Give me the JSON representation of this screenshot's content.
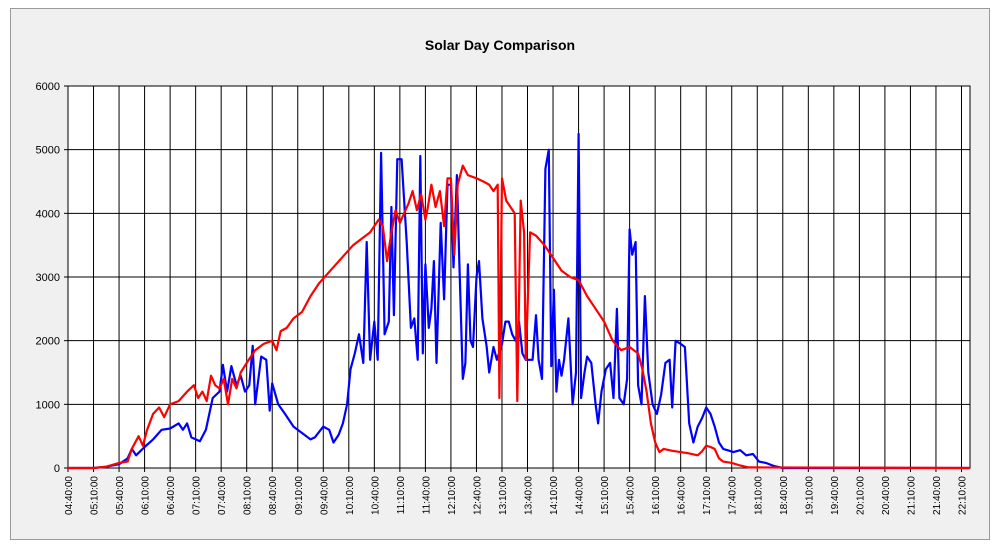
{
  "chart_data": {
    "type": "line",
    "title": "Solar Day Comparison",
    "xlabel": "",
    "ylabel": "",
    "ylim": [
      0,
      6000
    ],
    "yticks": [
      0,
      1000,
      2000,
      3000,
      4000,
      5000,
      6000
    ],
    "x_range": [
      "04:40:00",
      "22:20:00"
    ],
    "xtick_labels": [
      "04:40:00",
      "05:10:00",
      "05:40:00",
      "06:10:00",
      "06:40:00",
      "07:10:00",
      "07:40:00",
      "08:10:00",
      "08:40:00",
      "09:10:00",
      "09:40:00",
      "10:10:00",
      "10:40:00",
      "11:10:00",
      "11:40:00",
      "12:10:00",
      "12:40:00",
      "13:10:00",
      "13:40:00",
      "14:10:00",
      "14:40:00",
      "15:10:00",
      "15:40:00",
      "16:10:00",
      "16:40:00",
      "17:10:00",
      "17:40:00",
      "18:10:00",
      "18:40:00",
      "19:10:00",
      "19:40:00",
      "20:10:00",
      "20:40:00",
      "21:10:00",
      "21:40:00",
      "22:10:00"
    ],
    "grid": true,
    "colors": {
      "series_blue": "#0000ff",
      "series_red": "#ff0000",
      "plot_bg": "#ffffff",
      "frame_bg": "#f0f0f0"
    },
    "series": [
      {
        "color": "#0000ff",
        "points": [
          [
            "04:40:00",
            0
          ],
          [
            "05:10:00",
            0
          ],
          [
            "05:25:00",
            20
          ],
          [
            "05:40:00",
            60
          ],
          [
            "05:50:00",
            150
          ],
          [
            "05:55:00",
            300
          ],
          [
            "06:00:00",
            200
          ],
          [
            "06:10:00",
            330
          ],
          [
            "06:20:00",
            450
          ],
          [
            "06:30:00",
            600
          ],
          [
            "06:40:00",
            620
          ],
          [
            "06:50:00",
            700
          ],
          [
            "06:55:00",
            600
          ],
          [
            "07:00:00",
            700
          ],
          [
            "07:05:00",
            480
          ],
          [
            "07:15:00",
            420
          ],
          [
            "07:22:00",
            600
          ],
          [
            "07:30:00",
            1100
          ],
          [
            "07:38:00",
            1200
          ],
          [
            "07:42:00",
            1620
          ],
          [
            "07:47:00",
            1200
          ],
          [
            "07:52:00",
            1600
          ],
          [
            "07:58:00",
            1300
          ],
          [
            "08:03:00",
            1450
          ],
          [
            "08:08:00",
            1200
          ],
          [
            "08:13:00",
            1300
          ],
          [
            "08:17:00",
            1920
          ],
          [
            "08:20:00",
            1000
          ],
          [
            "08:27:00",
            1750
          ],
          [
            "08:33:00",
            1700
          ],
          [
            "08:37:00",
            900
          ],
          [
            "08:40:00",
            1330
          ],
          [
            "08:47:00",
            1000
          ],
          [
            "08:55:00",
            850
          ],
          [
            "09:05:00",
            650
          ],
          [
            "09:15:00",
            550
          ],
          [
            "09:25:00",
            450
          ],
          [
            "09:30:00",
            480
          ],
          [
            "09:40:00",
            650
          ],
          [
            "09:47:00",
            600
          ],
          [
            "09:52:00",
            400
          ],
          [
            "09:58:00",
            520
          ],
          [
            "10:03:00",
            700
          ],
          [
            "10:08:00",
            1000
          ],
          [
            "10:12:00",
            1550
          ],
          [
            "10:17:00",
            1800
          ],
          [
            "10:22:00",
            2100
          ],
          [
            "10:27:00",
            1650
          ],
          [
            "10:31:00",
            3550
          ],
          [
            "10:35:00",
            1700
          ],
          [
            "10:40:00",
            2300
          ],
          [
            "10:44:00",
            1700
          ],
          [
            "10:48:00",
            4950
          ],
          [
            "10:52:00",
            2100
          ],
          [
            "10:57:00",
            2300
          ],
          [
            "11:00:00",
            4100
          ],
          [
            "11:03:00",
            2400
          ],
          [
            "11:07:00",
            4850
          ],
          [
            "11:12:00",
            4850
          ],
          [
            "11:18:00",
            3550
          ],
          [
            "11:23:00",
            2200
          ],
          [
            "11:27:00",
            2350
          ],
          [
            "11:31:00",
            1700
          ],
          [
            "11:34:00",
            4900
          ],
          [
            "11:37:00",
            1800
          ],
          [
            "11:40:00",
            3200
          ],
          [
            "11:44:00",
            2200
          ],
          [
            "11:47:00",
            2500
          ],
          [
            "11:50:00",
            3250
          ],
          [
            "11:53:00",
            1650
          ],
          [
            "11:58:00",
            3850
          ],
          [
            "12:02:00",
            2650
          ],
          [
            "12:06:00",
            4450
          ],
          [
            "12:10:00",
            4450
          ],
          [
            "12:13:00",
            3150
          ],
          [
            "12:17:00",
            4600
          ],
          [
            "12:20:00",
            3200
          ],
          [
            "12:24:00",
            1400
          ],
          [
            "12:27:00",
            1650
          ],
          [
            "12:30:00",
            3200
          ],
          [
            "12:33:00",
            2000
          ],
          [
            "12:36:00",
            1900
          ],
          [
            "12:40:00",
            3000
          ],
          [
            "12:43:00",
            3250
          ],
          [
            "12:47:00",
            2350
          ],
          [
            "12:52:00",
            1900
          ],
          [
            "12:55:00",
            1500
          ],
          [
            "13:00:00",
            1900
          ],
          [
            "13:04:00",
            1700
          ],
          [
            "13:10:00",
            1950
          ],
          [
            "13:14:00",
            2300
          ],
          [
            "13:18:00",
            2300
          ],
          [
            "13:22:00",
            2100
          ],
          [
            "13:26:00",
            2000
          ],
          [
            "13:30:00",
            2300
          ],
          [
            "13:34:00",
            1800
          ],
          [
            "13:38:00",
            1700
          ],
          [
            "13:42:00",
            1700
          ],
          [
            "13:46:00",
            1700
          ],
          [
            "13:50:00",
            2400
          ],
          [
            "13:53:00",
            1700
          ],
          [
            "13:57:00",
            1400
          ],
          [
            "14:01:00",
            4700
          ],
          [
            "14:05:00",
            5000
          ],
          [
            "14:08:00",
            1600
          ],
          [
            "14:11:00",
            2800
          ],
          [
            "14:14:00",
            1200
          ],
          [
            "14:17:00",
            1700
          ],
          [
            "14:20:00",
            1450
          ],
          [
            "14:23:00",
            1700
          ],
          [
            "14:28:00",
            2350
          ],
          [
            "14:33:00",
            1000
          ],
          [
            "14:37:00",
            1500
          ],
          [
            "14:40:00",
            5250
          ],
          [
            "14:43:00",
            1100
          ],
          [
            "14:47:00",
            1500
          ],
          [
            "14:50:00",
            1750
          ],
          [
            "14:55:00",
            1650
          ],
          [
            "15:00:00",
            1000
          ],
          [
            "15:03:00",
            700
          ],
          [
            "15:07:00",
            1200
          ],
          [
            "15:12:00",
            1550
          ],
          [
            "15:17:00",
            1650
          ],
          [
            "15:21:00",
            1100
          ],
          [
            "15:25:00",
            2500
          ],
          [
            "15:28:00",
            1100
          ],
          [
            "15:33:00",
            1000
          ],
          [
            "15:37:00",
            1400
          ],
          [
            "15:40:00",
            3750
          ],
          [
            "15:43:00",
            3350
          ],
          [
            "15:47:00",
            3550
          ],
          [
            "15:50:00",
            1300
          ],
          [
            "15:54:00",
            1000
          ],
          [
            "15:58:00",
            2700
          ],
          [
            "16:02:00",
            1500
          ],
          [
            "16:07:00",
            1000
          ],
          [
            "16:12:00",
            850
          ],
          [
            "16:17:00",
            1150
          ],
          [
            "16:22:00",
            1650
          ],
          [
            "16:27:00",
            1700
          ],
          [
            "16:30:00",
            950
          ],
          [
            "16:34:00",
            2000
          ],
          [
            "16:40:00",
            1950
          ],
          [
            "16:45:00",
            1900
          ],
          [
            "16:50:00",
            700
          ],
          [
            "16:55:00",
            400
          ],
          [
            "17:00:00",
            650
          ],
          [
            "17:05:00",
            780
          ],
          [
            "17:10:00",
            950
          ],
          [
            "17:15:00",
            850
          ],
          [
            "17:20:00",
            650
          ],
          [
            "17:25:00",
            400
          ],
          [
            "17:30:00",
            300
          ],
          [
            "17:35:00",
            280
          ],
          [
            "17:42:00",
            250
          ],
          [
            "17:50:00",
            280
          ],
          [
            "17:57:00",
            200
          ],
          [
            "18:05:00",
            220
          ],
          [
            "18:12:00",
            100
          ],
          [
            "18:20:00",
            80
          ],
          [
            "18:30:00",
            30
          ],
          [
            "18:40:00",
            0
          ],
          [
            "22:20:00",
            0
          ]
        ]
      },
      {
        "color": "#ff0000",
        "points": [
          [
            "04:40:00",
            0
          ],
          [
            "05:10:00",
            0
          ],
          [
            "05:25:00",
            20
          ],
          [
            "05:40:00",
            80
          ],
          [
            "05:50:00",
            100
          ],
          [
            "05:55:00",
            300
          ],
          [
            "06:03:00",
            500
          ],
          [
            "06:08:00",
            350
          ],
          [
            "06:13:00",
            600
          ],
          [
            "06:20:00",
            850
          ],
          [
            "06:27:00",
            950
          ],
          [
            "06:33:00",
            800
          ],
          [
            "06:40:00",
            1000
          ],
          [
            "06:50:00",
            1050
          ],
          [
            "07:00:00",
            1200
          ],
          [
            "07:08:00",
            1300
          ],
          [
            "07:13:00",
            1100
          ],
          [
            "07:18:00",
            1200
          ],
          [
            "07:23:00",
            1050
          ],
          [
            "07:28:00",
            1450
          ],
          [
            "07:33:00",
            1300
          ],
          [
            "07:38:00",
            1250
          ],
          [
            "07:43:00",
            1400
          ],
          [
            "07:48:00",
            1000
          ],
          [
            "07:53:00",
            1400
          ],
          [
            "07:58:00",
            1250
          ],
          [
            "08:03:00",
            1500
          ],
          [
            "08:10:00",
            1650
          ],
          [
            "08:20:00",
            1850
          ],
          [
            "08:30:00",
            1950
          ],
          [
            "08:40:00",
            2000
          ],
          [
            "08:45:00",
            1850
          ],
          [
            "08:50:00",
            2150
          ],
          [
            "08:57:00",
            2200
          ],
          [
            "09:05:00",
            2350
          ],
          [
            "09:15:00",
            2450
          ],
          [
            "09:25:00",
            2700
          ],
          [
            "09:35:00",
            2900
          ],
          [
            "09:45:00",
            3050
          ],
          [
            "09:55:00",
            3200
          ],
          [
            "10:05:00",
            3350
          ],
          [
            "10:15:00",
            3500
          ],
          [
            "10:25:00",
            3600
          ],
          [
            "10:35:00",
            3700
          ],
          [
            "10:45:00",
            3900
          ],
          [
            "10:50:00",
            3800
          ],
          [
            "10:55:00",
            3250
          ],
          [
            "11:00:00",
            3700
          ],
          [
            "11:05:00",
            4050
          ],
          [
            "11:10:00",
            3850
          ],
          [
            "11:15:00",
            4000
          ],
          [
            "11:20:00",
            4150
          ],
          [
            "11:25:00",
            4350
          ],
          [
            "11:30:00",
            4050
          ],
          [
            "11:35:00",
            4300
          ],
          [
            "11:40:00",
            3900
          ],
          [
            "11:43:00",
            4100
          ],
          [
            "11:47:00",
            4450
          ],
          [
            "11:52:00",
            4100
          ],
          [
            "11:57:00",
            4350
          ],
          [
            "12:02:00",
            3800
          ],
          [
            "12:06:00",
            4550
          ],
          [
            "12:10:00",
            4550
          ],
          [
            "12:14:00",
            3350
          ],
          [
            "12:18:00",
            4450
          ],
          [
            "12:24:00",
            4750
          ],
          [
            "12:30:00",
            4600
          ],
          [
            "12:40:00",
            4550
          ],
          [
            "12:48:00",
            4500
          ],
          [
            "12:55:00",
            4450
          ],
          [
            "13:00:00",
            4350
          ],
          [
            "13:05:00",
            4450
          ],
          [
            "13:07:00",
            1100
          ],
          [
            "13:10:00",
            4550
          ],
          [
            "13:15:00",
            4200
          ],
          [
            "13:20:00",
            4100
          ],
          [
            "13:25:00",
            4000
          ],
          [
            "13:28:00",
            1050
          ],
          [
            "13:32:00",
            4200
          ],
          [
            "13:36:00",
            3700
          ],
          [
            "13:38:00",
            1700
          ],
          [
            "13:43:00",
            3700
          ],
          [
            "13:50:00",
            3650
          ],
          [
            "14:00:00",
            3500
          ],
          [
            "14:10:00",
            3300
          ],
          [
            "14:20:00",
            3100
          ],
          [
            "14:30:00",
            3000
          ],
          [
            "14:40:00",
            2950
          ],
          [
            "14:50:00",
            2700
          ],
          [
            "15:00:00",
            2500
          ],
          [
            "15:10:00",
            2300
          ],
          [
            "15:20:00",
            2000
          ],
          [
            "15:30:00",
            1850
          ],
          [
            "15:40:00",
            1900
          ],
          [
            "15:50:00",
            1800
          ],
          [
            "15:55:00",
            1550
          ],
          [
            "16:00:00",
            1200
          ],
          [
            "16:05:00",
            700
          ],
          [
            "16:10:00",
            400
          ],
          [
            "16:15:00",
            250
          ],
          [
            "16:20:00",
            300
          ],
          [
            "16:30:00",
            270
          ],
          [
            "16:40:00",
            250
          ],
          [
            "16:50:00",
            230
          ],
          [
            "17:00:00",
            200
          ],
          [
            "17:05:00",
            260
          ],
          [
            "17:10:00",
            350
          ],
          [
            "17:15:00",
            330
          ],
          [
            "17:20:00",
            300
          ],
          [
            "17:25:00",
            150
          ],
          [
            "17:30:00",
            100
          ],
          [
            "17:40:00",
            80
          ],
          [
            "17:50:00",
            40
          ],
          [
            "18:00:00",
            10
          ],
          [
            "22:20:00",
            0
          ]
        ]
      }
    ]
  }
}
